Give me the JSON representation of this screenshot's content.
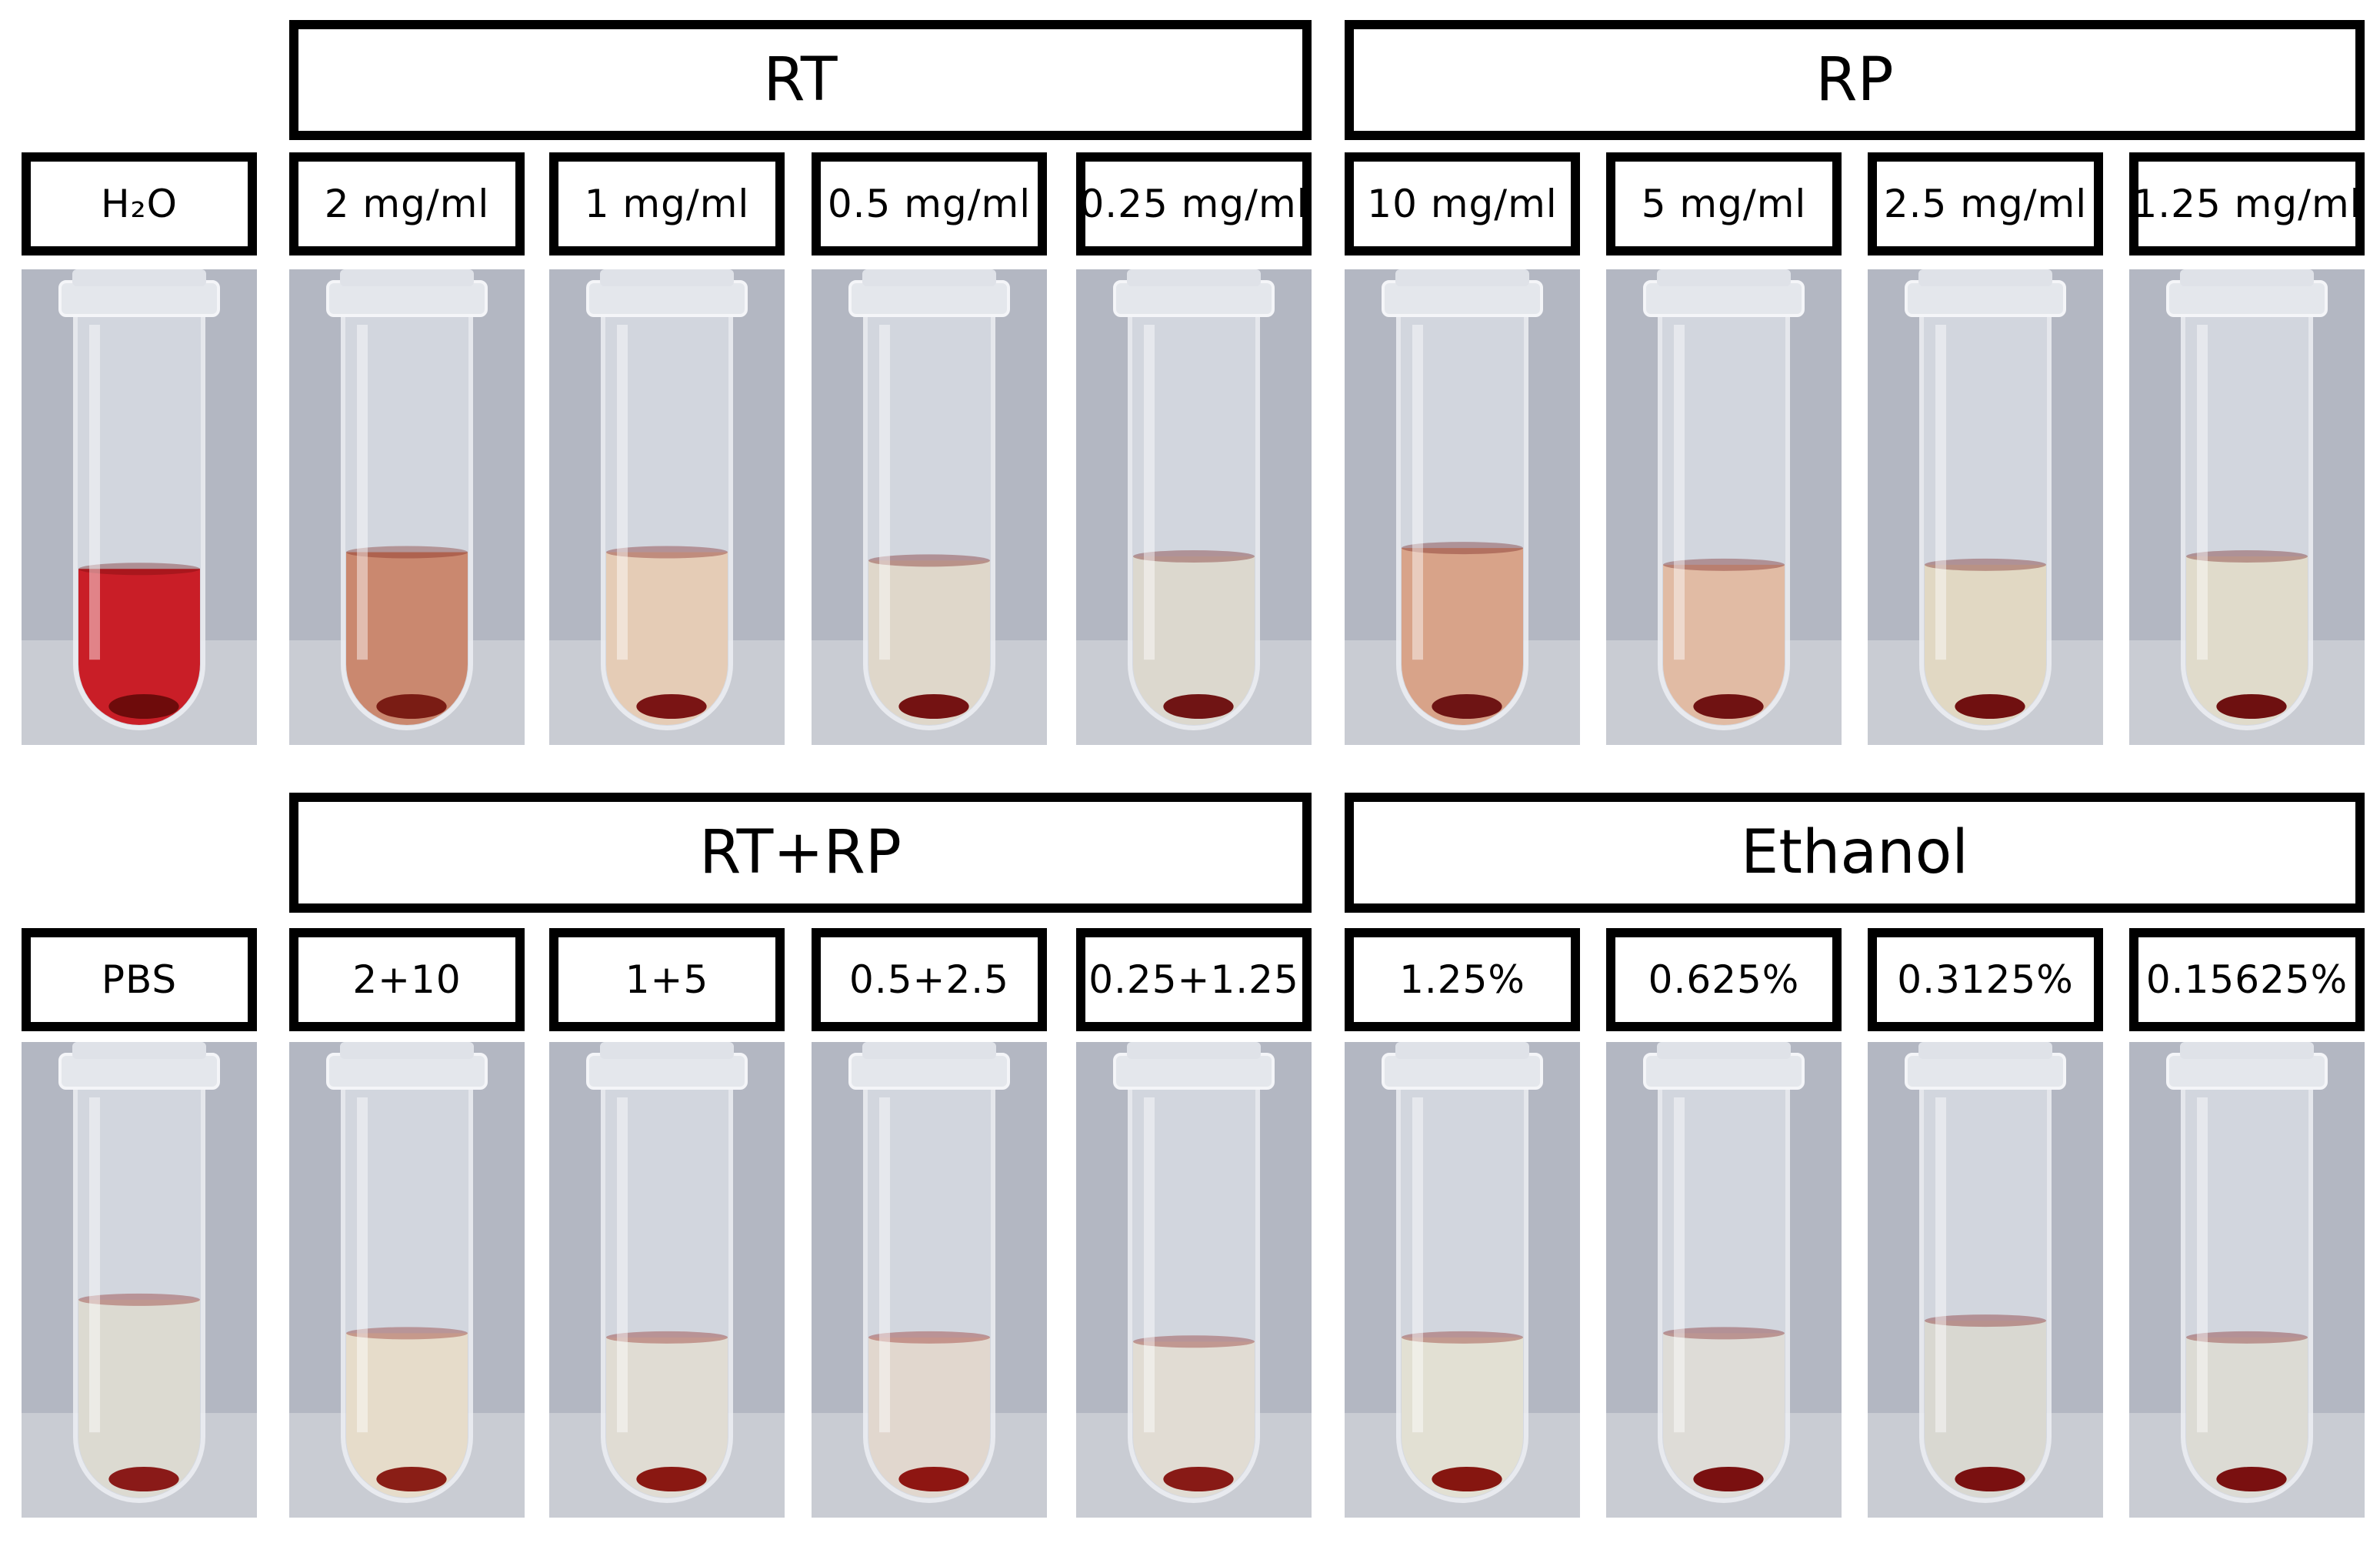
{
  "rows": [
    {
      "groups": [
        {
          "label": "RT",
          "span": [
            1,
            4
          ]
        },
        {
          "label": "RP",
          "span": [
            5,
            8
          ]
        }
      ],
      "samples": [
        {
          "label": "H₂O",
          "liquid": "#c8141c",
          "liquid_level": 0.38,
          "pellet": "#6e0b0b"
        },
        {
          "label": "2 mg/ml",
          "liquid": "#c98468",
          "liquid_level": 0.42,
          "pellet": "#7a1c14"
        },
        {
          "label": "1 mg/ml",
          "liquid": "#e6cbb3",
          "liquid_level": 0.42,
          "pellet": "#7a1414"
        },
        {
          "label": "0.5 mg/ml",
          "liquid": "#dfd7c8",
          "liquid_level": 0.4,
          "pellet": "#741212"
        },
        {
          "label": "0.25 mg/ml",
          "liquid": "#dcd8cc",
          "liquid_level": 0.41,
          "pellet": "#701414"
        },
        {
          "label": "10 mg/ml",
          "liquid": "#d8a084",
          "liquid_level": 0.43,
          "pellet": "#6e1414"
        },
        {
          "label": "5 mg/ml",
          "liquid": "#e2b9a0",
          "liquid_level": 0.39,
          "pellet": "#701212"
        },
        {
          "label": "2.5 mg/ml",
          "liquid": "#e2d8c1",
          "liquid_level": 0.39,
          "pellet": "#701010"
        },
        {
          "label": "1.25 mg/ml",
          "liquid": "#e0dbc9",
          "liquid_level": 0.41,
          "pellet": "#6e1010"
        }
      ]
    },
    {
      "groups": [
        {
          "label": "RT+RP",
          "span": [
            1,
            4
          ]
        },
        {
          "label": "Ethanol",
          "span": [
            5,
            8
          ]
        }
      ],
      "samples": [
        {
          "label": "PBS",
          "liquid": "#dcdad0",
          "liquid_level": 0.48,
          "pellet": "#8a1a18"
        },
        {
          "label": "2+10",
          "liquid": "#e7dcc8",
          "liquid_level": 0.4,
          "pellet": "#8a1e16"
        },
        {
          "label": "1+5",
          "liquid": "#e0dcd2",
          "liquid_level": 0.39,
          "pellet": "#8a1812"
        },
        {
          "label": "0.5+2.5",
          "liquid": "#e1d7cc",
          "liquid_level": 0.39,
          "pellet": "#8e1612"
        },
        {
          "label": "0.25+1.25",
          "liquid": "#e2dcd2",
          "liquid_level": 0.38,
          "pellet": "#881a16"
        },
        {
          "label": "1.25%",
          "liquid": "#e3e0d2",
          "liquid_level": 0.39,
          "pellet": "#861610"
        },
        {
          "label": "0.625%",
          "liquid": "#dedcd6",
          "liquid_level": 0.4,
          "pellet": "#7a1010"
        },
        {
          "label": "0.3125%",
          "liquid": "#d9d8d0",
          "liquid_level": 0.43,
          "pellet": "#7a1010"
        },
        {
          "label": "0.15625%",
          "liquid": "#dcdbd3",
          "liquid_level": 0.39,
          "pellet": "#7a1010"
        }
      ]
    }
  ],
  "colors": {
    "background": "#ffffff",
    "border": "#000000",
    "photo_backdrop": "#b3b7c2",
    "tube_glass": "#d8dce4"
  }
}
